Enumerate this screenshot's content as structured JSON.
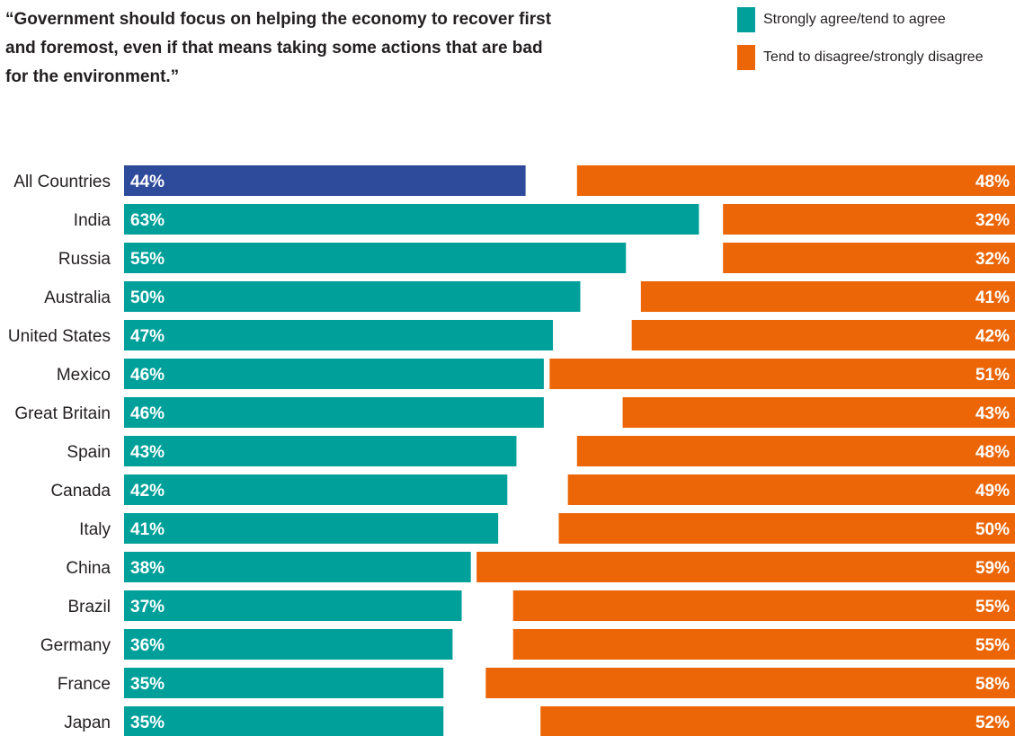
{
  "title": "“Government should focus on helping the economy to recover first and foremost, even if that means taking some actions that are bad for the environment.”",
  "legend": [
    {
      "label": "Strongly agree/tend to agree",
      "color": "#00a09a"
    },
    {
      "label": "Tend to disagree/strongly disagree",
      "color": "#ec6608"
    }
  ],
  "colors": {
    "agree": "#00a09a",
    "disagree": "#ec6608",
    "total": "#2e4a9a",
    "label_text": "#231f20",
    "bar_text": "#ffffff"
  },
  "chart_data": {
    "type": "bar",
    "title": "“Government should focus on helping the economy to recover first and foremost, even if that means taking some actions that are bad for the environment.”",
    "categories": [
      "All Countries",
      "India",
      "Russia",
      "Australia",
      "United States",
      "Mexico",
      "Great Britain",
      "Spain",
      "Canada",
      "Italy",
      "China",
      "Brazil",
      "Germany",
      "France",
      "Japan"
    ],
    "series": [
      {
        "name": "Strongly agree/tend to agree",
        "values": [
          44,
          63,
          55,
          50,
          47,
          46,
          46,
          43,
          42,
          41,
          38,
          37,
          36,
          35,
          35
        ]
      },
      {
        "name": "Tend to disagree/strongly disagree",
        "values": [
          48,
          32,
          32,
          41,
          42,
          51,
          43,
          48,
          49,
          50,
          59,
          55,
          55,
          58,
          52
        ]
      }
    ],
    "unit": "%",
    "xlabel": "",
    "ylabel": "",
    "grid": false,
    "legend_position": "top-right"
  }
}
